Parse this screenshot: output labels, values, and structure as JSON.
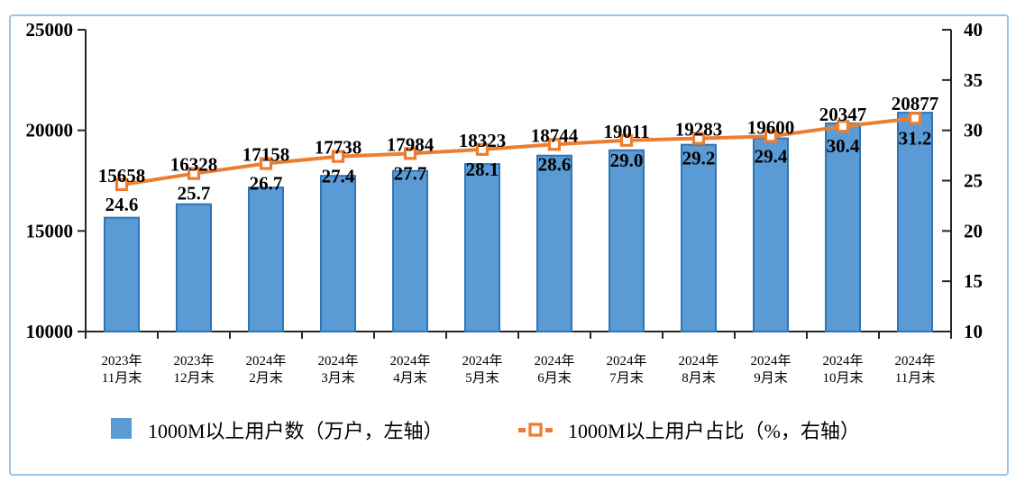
{
  "chart_data": {
    "type": "bar+line combo",
    "categories": [
      [
        "2023年",
        "11月末"
      ],
      [
        "2023年",
        "12月末"
      ],
      [
        "2024年",
        "2月末"
      ],
      [
        "2024年",
        "3月末"
      ],
      [
        "2024年",
        "4月末"
      ],
      [
        "2024年",
        "5月末"
      ],
      [
        "2024年",
        "6月末"
      ],
      [
        "2024年",
        "7月末"
      ],
      [
        "2024年",
        "8月末"
      ],
      [
        "2024年",
        "9月末"
      ],
      [
        "2024年",
        "10月末"
      ],
      [
        "2024年",
        "11月末"
      ]
    ],
    "series": [
      {
        "name": "1000M以上用户数（万户，左轴）",
        "type": "bar",
        "axis": "left",
        "values": [
          15658,
          16328,
          17158,
          17738,
          17984,
          18323,
          18744,
          19011,
          19283,
          19600,
          20347,
          20877
        ],
        "labels": [
          "15658",
          "16328",
          "17158",
          "17738",
          "17984",
          "18323",
          "18744",
          "19011",
          "19283",
          "19600",
          "20347",
          "20877"
        ]
      },
      {
        "name": "1000M以上用户占比（%，右轴）",
        "type": "line",
        "axis": "right",
        "values": [
          24.6,
          25.7,
          26.7,
          27.4,
          27.7,
          28.1,
          28.6,
          29.0,
          29.2,
          29.4,
          30.4,
          31.2
        ],
        "labels": [
          "24.6",
          "25.7",
          "26.7",
          "27.4",
          "27.7",
          "28.1",
          "28.6",
          "29.0",
          "29.2",
          "29.4",
          "30.4",
          "31.2"
        ]
      }
    ],
    "left_axis": {
      "min": 10000,
      "max": 25000,
      "step": 5000,
      "tick_labels": [
        "25000",
        "20000",
        "15000",
        "10000"
      ]
    },
    "right_axis": {
      "min": 10,
      "max": 40,
      "step": 5,
      "tick_labels": [
        "40",
        "35",
        "30",
        "25",
        "20",
        "15",
        "10"
      ]
    },
    "grid": false,
    "legend_position": "bottom",
    "colors": {
      "bar_fill": "#5B9BD5",
      "bar_stroke": "#2E75B6",
      "line": "#ED7D31",
      "marker_fill": "#FFFFFF",
      "axis": "#262626",
      "label_text": "#000000",
      "category_text": "#333333",
      "frame": "#9DC3E6"
    }
  }
}
